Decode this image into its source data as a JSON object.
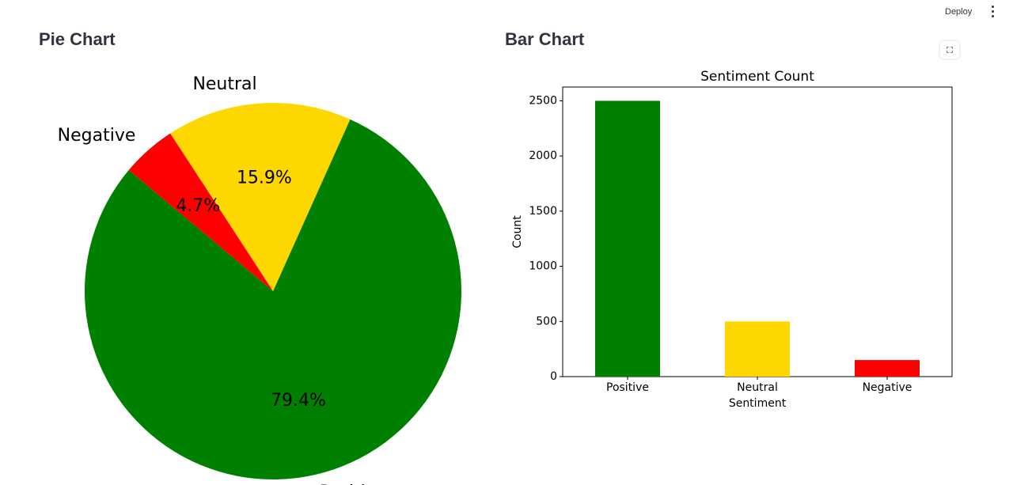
{
  "topbar": {
    "deploy_label": "Deploy",
    "menu_icon": "more-vertical-icon"
  },
  "headings": {
    "pie": "Pie Chart",
    "bar": "Bar Chart"
  },
  "fullscreen_icon": "fullscreen-icon",
  "chart_data": [
    {
      "type": "pie",
      "labels": [
        "Positive",
        "Neutral",
        "Negative"
      ],
      "values": [
        79.4,
        15.9,
        4.7
      ],
      "pct_labels": [
        "79.4%",
        "15.9%",
        "4.7%"
      ],
      "colors": [
        "#008000",
        "#ffd700",
        "#ff0000"
      ]
    },
    {
      "type": "bar",
      "title": "Sentiment Count",
      "xlabel": "Sentiment",
      "ylabel": "Count",
      "categories": [
        "Positive",
        "Neutral",
        "Negative"
      ],
      "values": [
        2500,
        500,
        150
      ],
      "colors": [
        "#008000",
        "#ffd700",
        "#ff0000"
      ],
      "yticks": [
        0,
        500,
        1000,
        1500,
        2000,
        2500
      ],
      "ylim": [
        0,
        2625
      ],
      "grid": false
    }
  ]
}
